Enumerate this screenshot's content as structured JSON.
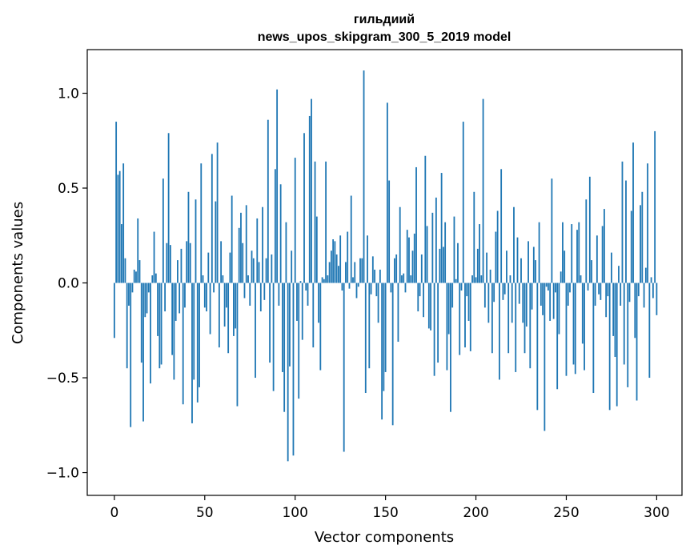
{
  "chart_data": {
    "type": "bar",
    "title": "гильдиий",
    "subtitle": "news_upos_skipgram_300_5_2019 model",
    "xlabel": "Vector components",
    "ylabel": "Components values",
    "xlim": [
      -15,
      314
    ],
    "ylim": [
      -1.12,
      1.23
    ],
    "xticks": [
      0,
      50,
      100,
      150,
      200,
      250,
      300
    ],
    "xtick_labels": [
      "0",
      "50",
      "100",
      "150",
      "200",
      "250",
      "300"
    ],
    "yticks": [
      1.0,
      0.5,
      0.0,
      -0.5,
      -1.0
    ],
    "ytick_labels": [
      "1.0",
      "0.5",
      "0.0",
      "−0.5",
      "−1.0"
    ],
    "colors": {
      "bar": "#1f77b4",
      "axis": "#000000"
    },
    "values": [
      -0.29,
      0.85,
      0.57,
      0.59,
      0.31,
      0.63,
      0.13,
      -0.45,
      -0.12,
      -0.76,
      -0.05,
      0.07,
      0.06,
      0.34,
      0.12,
      -0.42,
      -0.73,
      -0.18,
      -0.16,
      -0.05,
      -0.53,
      0.04,
      0.27,
      0.05,
      -0.28,
      -0.45,
      -0.43,
      0.55,
      -0.15,
      0.21,
      0.79,
      0.2,
      -0.38,
      -0.51,
      -0.2,
      0.12,
      -0.16,
      0.18,
      -0.64,
      -0.13,
      0.22,
      0.48,
      0.21,
      -0.74,
      -0.51,
      0.44,
      -0.63,
      -0.55,
      0.63,
      0.04,
      -0.13,
      -0.15,
      0.16,
      -0.27,
      0.68,
      -0.05,
      0.43,
      0.74,
      -0.34,
      0.22,
      0.04,
      -0.23,
      -0.13,
      -0.37,
      0.16,
      0.46,
      -0.28,
      -0.24,
      -0.65,
      0.29,
      0.37,
      0.21,
      -0.08,
      0.41,
      0.04,
      -0.12,
      0.17,
      0.13,
      -0.5,
      0.34,
      0.11,
      -0.15,
      0.4,
      -0.09,
      0.13,
      0.86,
      -0.42,
      0.15,
      -0.57,
      0.6,
      1.02,
      -0.12,
      0.52,
      -0.47,
      -0.68,
      0.32,
      -0.94,
      -0.44,
      0.17,
      -0.91,
      0.66,
      -0.2,
      -0.61,
      0.01,
      -0.3,
      0.79,
      -0.04,
      -0.12,
      0.88,
      0.97,
      -0.34,
      0.64,
      0.35,
      -0.21,
      -0.46,
      0.03,
      0.02,
      0.64,
      0.04,
      0.11,
      0.17,
      0.23,
      0.22,
      0.15,
      0.09,
      0.25,
      -0.04,
      -0.89,
      0.11,
      0.27,
      -0.03,
      0.46,
      0.03,
      0.11,
      -0.08,
      -0.02,
      0.13,
      0.13,
      1.12,
      -0.58,
      0.25,
      -0.45,
      -0.06,
      0.14,
      0.07,
      -0.07,
      -0.21,
      0.07,
      -0.72,
      -0.57,
      -0.47,
      0.95,
      0.54,
      -0.05,
      -0.75,
      0.13,
      0.15,
      -0.31,
      0.4,
      0.04,
      0.05,
      -0.05,
      0.28,
      0.24,
      0.04,
      0.17,
      0.26,
      0.61,
      -0.15,
      -0.07,
      0.15,
      -0.18,
      0.67,
      0.3,
      -0.24,
      -0.25,
      0.37,
      -0.49,
      0.45,
      -0.42,
      0.18,
      0.58,
      0.19,
      0.32,
      -0.46,
      -0.27,
      -0.68,
      -0.13,
      0.35,
      0.02,
      0.21,
      -0.38,
      -0.04,
      0.85,
      -0.34,
      -0.07,
      -0.2,
      -0.36,
      0.04,
      0.48,
      0.03,
      0.18,
      0.31,
      0.04,
      0.97,
      -0.13,
      0.16,
      -0.21,
      0.07,
      -0.37,
      -0.1,
      0.27,
      0.38,
      -0.51,
      0.6,
      -0.09,
      -0.06,
      0.17,
      -0.37,
      0.04,
      -0.21,
      0.4,
      -0.47,
      0.24,
      -0.11,
      0.13,
      -0.21,
      -0.37,
      -0.23,
      0.22,
      -0.45,
      -0.14,
      0.19,
      0.12,
      -0.67,
      0.32,
      -0.12,
      -0.17,
      -0.78,
      -0.02,
      -0.04,
      -0.2,
      0.55,
      -0.19,
      -0.05,
      -0.56,
      -0.27,
      0.06,
      0.32,
      0.17,
      -0.49,
      -0.12,
      -0.05,
      0.31,
      -0.43,
      -0.48,
      0.28,
      0.32,
      0.04,
      -0.32,
      -0.46,
      0.44,
      -0.04,
      0.56,
      0.12,
      -0.58,
      -0.12,
      0.25,
      -0.06,
      -0.09,
      0.3,
      0.39,
      -0.18,
      -0.07,
      -0.67,
      0.16,
      -0.28,
      -0.39,
      -0.65,
      0.09,
      -0.12,
      0.64,
      -0.43,
      0.54,
      -0.55,
      -0.1,
      0.38,
      0.74,
      -0.29,
      -0.62,
      -0.07,
      0.41,
      0.48,
      -0.13,
      0.08,
      0.63,
      -0.5,
      0.03,
      -0.08,
      0.8,
      -0.17
    ]
  }
}
